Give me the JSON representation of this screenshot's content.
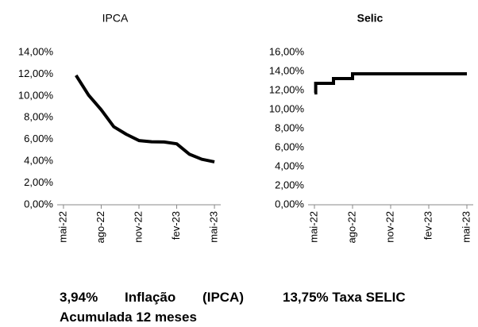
{
  "chart_data": [
    {
      "type": "line",
      "title": "IPCA",
      "x": [
        1,
        2,
        3,
        4,
        5,
        6,
        7,
        8,
        9,
        10,
        11,
        12
      ],
      "series": [
        {
          "name": "IPCA",
          "color": "#000000",
          "values": [
            11.89,
            10.07,
            8.73,
            7.17,
            6.47,
            5.9,
            5.79,
            5.77,
            5.6,
            4.65,
            4.18,
            3.94
          ]
        }
      ],
      "xlim": [
        -0.5,
        12.5
      ],
      "xticks": [
        {
          "value": 0,
          "label": "mai-22"
        },
        {
          "value": 3,
          "label": "ago-22"
        },
        {
          "value": 6,
          "label": "nov-22"
        },
        {
          "value": 9,
          "label": "fev-23"
        },
        {
          "value": 12,
          "label": "mai-23"
        }
      ],
      "ylim": [
        0,
        14
      ],
      "yticks": [
        {
          "value": 0,
          "label": "0,00%"
        },
        {
          "value": 2,
          "label": "2,00%"
        },
        {
          "value": 4,
          "label": "4,00%"
        },
        {
          "value": 6,
          "label": "6,00%"
        },
        {
          "value": 8,
          "label": "8,00%"
        },
        {
          "value": 10,
          "label": "10,00%"
        },
        {
          "value": 12,
          "label": "12,00%"
        },
        {
          "value": 14,
          "label": "14,00%"
        }
      ],
      "grid": false
    },
    {
      "type": "step",
      "title": "Selic",
      "x": [
        0,
        0.1,
        1.5,
        3,
        12
      ],
      "series": [
        {
          "name": "Selic",
          "color": "#000000",
          "values": [
            11.75,
            12.75,
            13.25,
            13.75,
            13.75
          ]
        }
      ],
      "xlim": [
        -0.5,
        12.5
      ],
      "xticks": [
        {
          "value": 0,
          "label": "mai-22"
        },
        {
          "value": 3,
          "label": "ago-22"
        },
        {
          "value": 6,
          "label": "nov-22"
        },
        {
          "value": 9,
          "label": "fev-23"
        },
        {
          "value": 12,
          "label": "mai-23"
        }
      ],
      "ylim": [
        0,
        16
      ],
      "yticks": [
        {
          "value": 0,
          "label": "0,00%"
        },
        {
          "value": 2,
          "label": "2,00%"
        },
        {
          "value": 4,
          "label": "4,00%"
        },
        {
          "value": 6,
          "label": "6,00%"
        },
        {
          "value": 8,
          "label": "8,00%"
        },
        {
          "value": 10,
          "label": "10,00%"
        },
        {
          "value": 12,
          "label": "12,00%"
        },
        {
          "value": 14,
          "label": "14,00%"
        },
        {
          "value": 16,
          "label": "16,00%"
        }
      ],
      "grid": false
    }
  ],
  "captions": [
    "3,94%  Inflação  (IPCA) Acumulada 12 meses",
    "13,75% Taxa SELIC"
  ]
}
